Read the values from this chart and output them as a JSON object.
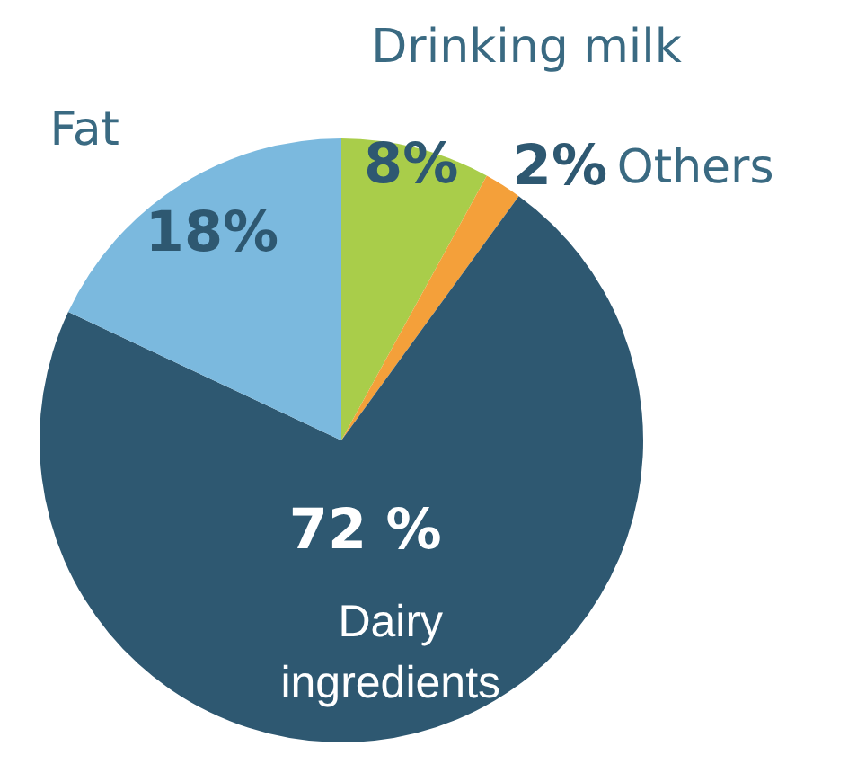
{
  "chart_data": {
    "type": "pie",
    "categories": [
      "Drinking milk",
      "Others",
      "Dairy ingredients",
      "Fat"
    ],
    "values": [
      8,
      2,
      72,
      18
    ],
    "colors": [
      "#a9cd4a",
      "#f4a03a",
      "#2e5871",
      "#7bb9de"
    ],
    "value_labels": [
      "8%",
      "2%",
      "72 %",
      "18%"
    ],
    "legend": false
  }
}
